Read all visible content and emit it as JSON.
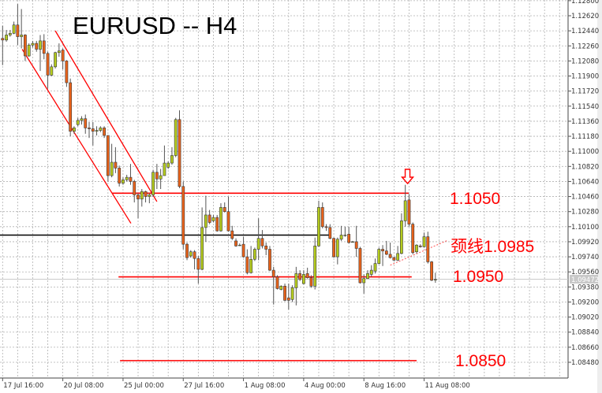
{
  "chart_data": {
    "type": "candlestick",
    "title": "EURUSD -- H4",
    "ylim": [
      1.084,
      1.128
    ],
    "grid": true,
    "y_ticks": [
      "1.12800",
      "1.12620",
      "1.12440",
      "1.12260",
      "1.12080",
      "1.11900",
      "1.11720",
      "1.11540",
      "1.11360",
      "1.11180",
      "1.11000",
      "1.10820",
      "1.10640",
      "1.10460",
      "1.10280",
      "1.10100",
      "1.09920",
      "1.09740",
      "1.09560",
      "1.09380",
      "1.09200",
      "1.09020",
      "1.08840",
      "1.08660",
      "1.08480"
    ],
    "x_ticks": [
      "17 Jul 16:00",
      "20 Jul 08:00",
      "25 Jul 00:00",
      "27 Jul 16:00",
      "1 Aug 08:00",
      "4 Aug 00:00",
      "8 Aug 16:00",
      "11 Aug 08:00"
    ],
    "current_price": "1.09472",
    "colors": {
      "bull": "#b5cc1e",
      "bear": "#e8621a",
      "annotation": "#ff0000",
      "support_line": "#000000"
    },
    "candles_ohlc": [
      [
        1.1235,
        1.125,
        1.1203,
        1.1233
      ],
      [
        1.1233,
        1.1245,
        1.1231,
        1.1239
      ],
      [
        1.1239,
        1.1245,
        1.1237,
        1.1241
      ],
      [
        1.1241,
        1.1255,
        1.124,
        1.1251
      ],
      [
        1.1251,
        1.1276,
        1.1227,
        1.1237
      ],
      [
        1.1237,
        1.127,
        1.1223,
        1.1239
      ],
      [
        1.1239,
        1.124,
        1.1208,
        1.1214
      ],
      [
        1.1214,
        1.1229,
        1.1213,
        1.1227
      ],
      [
        1.1227,
        1.1232,
        1.1224,
        1.1229
      ],
      [
        1.1229,
        1.1232,
        1.1219,
        1.1222
      ],
      [
        1.1222,
        1.1239,
        1.1196,
        1.1232
      ],
      [
        1.1232,
        1.124,
        1.121,
        1.1217
      ],
      [
        1.1217,
        1.1219,
        1.1175,
        1.1191
      ],
      [
        1.1191,
        1.1204,
        1.119,
        1.1201
      ],
      [
        1.1201,
        1.1219,
        1.1199,
        1.1218
      ],
      [
        1.1218,
        1.1229,
        1.1213,
        1.122
      ],
      [
        1.1221,
        1.1223,
        1.1198,
        1.1208
      ],
      [
        1.1208,
        1.1209,
        1.1177,
        1.1182
      ],
      [
        1.1182,
        1.1187,
        1.1118,
        1.1124
      ],
      [
        1.1124,
        1.113,
        1.1121,
        1.1128
      ],
      [
        1.1132,
        1.114,
        1.113,
        1.1137
      ],
      [
        1.1137,
        1.1142,
        1.1132,
        1.1139
      ],
      [
        1.1139,
        1.1144,
        1.1121,
        1.1128
      ],
      [
        1.1128,
        1.1135,
        1.1116,
        1.1127
      ],
      [
        1.1127,
        1.1135,
        1.1107,
        1.1124
      ],
      [
        1.1124,
        1.113,
        1.1119,
        1.1125
      ],
      [
        1.1125,
        1.113,
        1.1123,
        1.1128
      ],
      [
        1.1128,
        1.113,
        1.1116,
        1.1119
      ],
      [
        1.1119,
        1.1119,
        1.1064,
        1.1071
      ],
      [
        1.1071,
        1.1109,
        1.1069,
        1.1087
      ],
      [
        1.1087,
        1.1105,
        1.1074,
        1.108
      ],
      [
        1.108,
        1.1083,
        1.1058,
        1.1062
      ],
      [
        1.1062,
        1.1069,
        1.106,
        1.1066
      ],
      [
        1.1066,
        1.1072,
        1.1064,
        1.1069
      ],
      [
        1.1069,
        1.1085,
        1.106,
        1.1064
      ],
      [
        1.1064,
        1.1066,
        1.1039,
        1.1048
      ],
      [
        1.1048,
        1.105,
        1.102,
        1.1043
      ],
      [
        1.1043,
        1.1055,
        1.1034,
        1.1052
      ],
      [
        1.1052,
        1.1053,
        1.1039,
        1.1046
      ],
      [
        1.1046,
        1.105,
        1.1038,
        1.1048
      ],
      [
        1.1048,
        1.1078,
        1.1046,
        1.1075
      ],
      [
        1.1075,
        1.1085,
        1.1055,
        1.1067
      ],
      [
        1.1067,
        1.1079,
        1.1055,
        1.1071
      ],
      [
        1.1071,
        1.1107,
        1.1071,
        1.1086
      ],
      [
        1.1081,
        1.1088,
        1.1079,
        1.1086
      ],
      [
        1.1086,
        1.1105,
        1.1084,
        1.1095
      ],
      [
        1.1095,
        1.114,
        1.1093,
        1.1138
      ],
      [
        1.1138,
        1.1149,
        1.1056,
        1.1058
      ],
      [
        1.1058,
        1.1064,
        1.0983,
        1.0989
      ],
      [
        1.0989,
        1.0991,
        1.097,
        1.0973
      ],
      [
        1.0975,
        1.0982,
        1.0973,
        1.098
      ],
      [
        1.098,
        1.0982,
        1.0959,
        1.0972
      ],
      [
        1.0972,
        1.0975,
        1.0942,
        1.0959
      ],
      [
        1.0959,
        1.1033,
        1.0958,
        1.1009
      ],
      [
        1.1009,
        1.1047,
        1.0992,
        1.1024
      ],
      [
        1.1024,
        1.103,
        1.1013,
        1.1015
      ],
      [
        1.1017,
        1.1024,
        1.1015,
        1.1021
      ],
      [
        1.1021,
        1.1024,
        1.1004,
        1.1005
      ],
      [
        1.1005,
        1.1038,
        1.1004,
        1.1033
      ],
      [
        1.1033,
        1.1039,
        1.1027,
        1.1028
      ],
      [
        1.1028,
        1.1046,
        1.1004,
        1.1005
      ],
      [
        1.1005,
        1.1011,
        1.0994,
        1.0996
      ],
      [
        1.0993,
        1.0996,
        1.0986,
        1.0987
      ],
      [
        1.0988,
        1.099,
        1.0987,
        1.0988
      ],
      [
        1.0989,
        1.0998,
        1.0973,
        1.0974
      ],
      [
        1.0974,
        1.0983,
        1.0953,
        1.0955
      ],
      [
        1.0955,
        1.0987,
        1.0954,
        1.0971
      ],
      [
        1.0971,
        1.0985,
        1.0969,
        1.0983
      ],
      [
        1.0983,
        1.102,
        1.097,
        1.0996
      ],
      [
        1.0996,
        1.1006,
        1.0984,
        1.0987
      ],
      [
        1.0987,
        1.0991,
        1.0976,
        1.0983
      ],
      [
        1.0983,
        1.0987,
        1.0957,
        1.0958
      ],
      [
        1.0958,
        1.0962,
        1.0917,
        1.095
      ],
      [
        1.095,
        1.0952,
        1.0935,
        1.0936
      ],
      [
        1.0935,
        1.094,
        1.0934,
        1.0939
      ],
      [
        1.0939,
        1.0942,
        1.0921,
        1.0922
      ],
      [
        1.0925,
        1.0942,
        1.0911,
        1.0922
      ],
      [
        1.0923,
        1.094,
        1.092,
        1.0937
      ],
      [
        1.0937,
        1.0962,
        1.0916,
        1.0954
      ],
      [
        1.0954,
        1.0958,
        1.0945,
        1.0947
      ],
      [
        1.0942,
        1.0958,
        1.0941,
        1.0953
      ],
      [
        1.0954,
        1.0961,
        1.0948,
        1.0949
      ],
      [
        1.0949,
        1.0952,
        1.0937,
        1.0939
      ],
      [
        1.0939,
        1.0997,
        1.0935,
        1.0987
      ],
      [
        1.0987,
        1.1041,
        1.0986,
        1.1033
      ],
      [
        1.1033,
        1.1039,
        1.1008,
        1.101
      ],
      [
        1.101,
        1.1013,
        1.1005,
        1.1009
      ],
      [
        1.1009,
        1.1013,
        1.0995,
        1.0996
      ],
      [
        1.0996,
        1.0997,
        1.0973,
        1.0974
      ],
      [
        1.0974,
        1.0997,
        1.0965,
        1.0995
      ],
      [
        1.0995,
        1.1011,
        1.0993,
        1.1
      ],
      [
        1.1,
        1.101,
        1.0998,
        1.1
      ],
      [
        1.1001,
        1.101,
        1.099,
        1.0991
      ],
      [
        1.0992,
        1.0993,
        1.0991,
        1.0992
      ],
      [
        1.0992,
        1.1011,
        1.0974,
        1.0984
      ],
      [
        1.0984,
        1.0986,
        1.0942,
        1.0943
      ],
      [
        1.0943,
        1.0953,
        1.093,
        1.0948
      ],
      [
        1.0948,
        1.0958,
        1.0948,
        1.0954
      ],
      [
        1.0953,
        1.0964,
        1.095,
        1.0958
      ],
      [
        1.0957,
        1.0972,
        1.0954,
        1.0966
      ],
      [
        1.0966,
        1.0985,
        1.0965,
        1.0983
      ],
      [
        1.0983,
        1.0988,
        1.0963,
        1.0981
      ],
      [
        1.0981,
        1.0993,
        1.0976,
        1.0977
      ],
      [
        1.0977,
        1.0991,
        1.0972,
        1.0973
      ],
      [
        1.0973,
        1.0974,
        1.0969,
        1.097
      ],
      [
        1.097,
        1.0987,
        1.0969,
        1.0978
      ],
      [
        1.0978,
        1.1026,
        1.0977,
        1.1017
      ],
      [
        1.1017,
        1.106,
        1.101,
        1.1041
      ],
      [
        1.1042,
        1.1049,
        1.101,
        1.1013
      ],
      [
        1.1013,
        1.1015,
        1.0977,
        1.0979
      ],
      [
        1.098,
        1.0989,
        1.0978,
        1.0988
      ],
      [
        1.0987,
        1.0989,
        1.0985,
        1.0986
      ],
      [
        1.0986,
        1.1003,
        1.0985,
        1.0998
      ],
      [
        1.0998,
        1.1004,
        1.0966,
        1.0968
      ],
      [
        1.0968,
        1.0969,
        1.0945,
        1.0946
      ],
      [
        1.0947,
        1.0955,
        1.0943,
        1.0947
      ]
    ],
    "levels": [
      {
        "price": 1.105,
        "label": "1.1050"
      },
      {
        "price": 1.095,
        "label": "1.0950"
      },
      {
        "price": 1.085,
        "label": "1.0850"
      }
    ],
    "neckline": {
      "price": 1.0985,
      "label": "颈线1.0985"
    },
    "support_line_price": 1.1,
    "channel_upper": [
      [
        14,
        1.1244
      ],
      [
        41,
        1.104
      ]
    ],
    "channel_lower": [
      [
        5.2,
        1.1222
      ],
      [
        34.1,
        1.1014
      ]
    ],
    "neckline_trend": [
      [
        103,
        1.0964
      ],
      [
        118.4,
        1.0994
      ]
    ],
    "arrow": {
      "bar": 107.6,
      "direction": "down",
      "icon": "down-arrow-icon"
    }
  }
}
